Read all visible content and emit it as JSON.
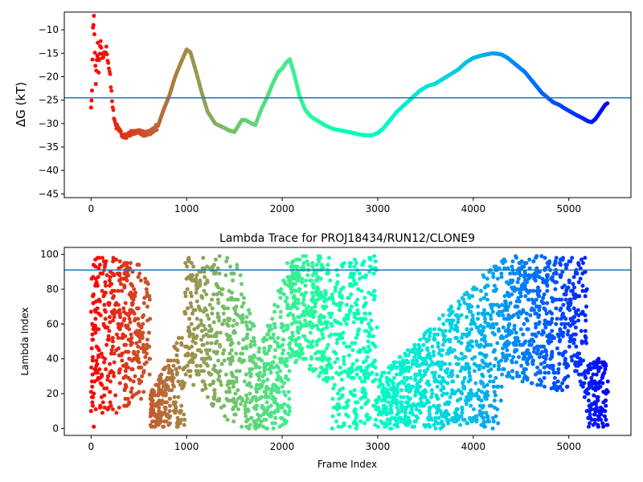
{
  "chart_data": [
    {
      "type": "scatter",
      "title": "",
      "xlabel": "",
      "ylabel": "ΔG (kT)",
      "xlim": [
        -280,
        5650
      ],
      "ylim": [
        -45.8,
        -6.2
      ],
      "xticks": [
        0,
        1000,
        2000,
        3000,
        4000,
        5000
      ],
      "yticks": [
        -45,
        -40,
        -35,
        -30,
        -25,
        -20,
        -15,
        -10
      ],
      "hline": -24.5,
      "hline_color": "#1f77b4",
      "colormap": "rainbow",
      "color_by": "frame index (early frames red/yellow, late frames purple)",
      "trace": [
        [
          0,
          -26
        ],
        [
          10,
          -23
        ],
        [
          20,
          -10
        ],
        [
          30,
          -7
        ],
        [
          40,
          -15
        ],
        [
          50,
          -21
        ],
        [
          60,
          -17
        ],
        [
          70,
          -13
        ],
        [
          80,
          -19
        ],
        [
          90,
          -15
        ],
        [
          100,
          -13
        ],
        [
          120,
          -16
        ],
        [
          140,
          -15
        ],
        [
          160,
          -14
        ],
        [
          180,
          -17
        ],
        [
          200,
          -20
        ],
        [
          220,
          -25
        ],
        [
          240,
          -29
        ],
        [
          260,
          -30.5
        ],
        [
          300,
          -31.5
        ],
        [
          340,
          -33
        ],
        [
          380,
          -32.5
        ],
        [
          420,
          -32
        ],
        [
          480,
          -32
        ],
        [
          520,
          -31.8
        ],
        [
          560,
          -32.2
        ],
        [
          600,
          -32
        ],
        [
          650,
          -31.5
        ],
        [
          700,
          -30.5
        ],
        [
          760,
          -27
        ],
        [
          820,
          -24
        ],
        [
          880,
          -20
        ],
        [
          940,
          -17
        ],
        [
          1000,
          -14.2
        ],
        [
          1040,
          -14.8
        ],
        [
          1100,
          -19
        ],
        [
          1160,
          -23.5
        ],
        [
          1220,
          -27.5
        ],
        [
          1300,
          -30
        ],
        [
          1380,
          -30.8
        ],
        [
          1450,
          -31.5
        ],
        [
          1500,
          -31.8
        ],
        [
          1540,
          -30.5
        ],
        [
          1580,
          -29.2
        ],
        [
          1620,
          -29.3
        ],
        [
          1680,
          -30
        ],
        [
          1720,
          -30.3
        ],
        [
          1780,
          -27
        ],
        [
          1840,
          -24.5
        ],
        [
          1900,
          -21.5
        ],
        [
          1960,
          -19
        ],
        [
          2000,
          -18.3
        ],
        [
          2040,
          -17
        ],
        [
          2080,
          -16.3
        ],
        [
          2120,
          -19
        ],
        [
          2180,
          -24
        ],
        [
          2240,
          -27
        ],
        [
          2300,
          -28.5
        ],
        [
          2380,
          -29.5
        ],
        [
          2460,
          -30.5
        ],
        [
          2540,
          -31.2
        ],
        [
          2620,
          -31.5
        ],
        [
          2700,
          -31.8
        ],
        [
          2780,
          -32.2
        ],
        [
          2860,
          -32.5
        ],
        [
          2940,
          -32.5
        ],
        [
          3000,
          -32
        ],
        [
          3060,
          -31
        ],
        [
          3120,
          -29.5
        ],
        [
          3200,
          -27.5
        ],
        [
          3280,
          -26
        ],
        [
          3360,
          -24.5
        ],
        [
          3440,
          -23
        ],
        [
          3520,
          -22
        ],
        [
          3600,
          -21.5
        ],
        [
          3680,
          -20.5
        ],
        [
          3760,
          -19.5
        ],
        [
          3840,
          -18.5
        ],
        [
          3920,
          -17
        ],
        [
          4000,
          -16
        ],
        [
          4080,
          -15.5
        ],
        [
          4150,
          -15.2
        ],
        [
          4200,
          -15
        ],
        [
          4250,
          -15.1
        ],
        [
          4300,
          -15.3
        ],
        [
          4360,
          -16
        ],
        [
          4420,
          -17
        ],
        [
          4480,
          -18
        ],
        [
          4540,
          -19
        ],
        [
          4600,
          -20.5
        ],
        [
          4660,
          -22
        ],
        [
          4720,
          -23.5
        ],
        [
          4780,
          -24.5
        ],
        [
          4840,
          -25.5
        ],
        [
          4900,
          -26
        ],
        [
          4960,
          -26.8
        ],
        [
          5020,
          -27.5
        ],
        [
          5080,
          -28.2
        ],
        [
          5140,
          -28.8
        ],
        [
          5200,
          -29.5
        ],
        [
          5240,
          -29.7
        ],
        [
          5280,
          -29
        ],
        [
          5330,
          -27.5
        ],
        [
          5380,
          -26
        ],
        [
          5410,
          -25.6
        ]
      ]
    },
    {
      "type": "scatter",
      "title": "Lambda Trace for PROJ18434/RUN12/CLONE9",
      "xlabel": "Frame Index",
      "ylabel": "Lambda Index",
      "xlim": [
        -280,
        5650
      ],
      "ylim": [
        -4,
        104
      ],
      "xticks": [
        0,
        1000,
        2000,
        3000,
        4000,
        5000
      ],
      "yticks": [
        0,
        20,
        40,
        60,
        80,
        100
      ],
      "hline": 91,
      "hline_color": "#1f77b4",
      "colormap": "rainbow",
      "color_by": "frame index (early frames red/yellow, late frames purple)",
      "frame_range": [
        0,
        5410
      ],
      "lambda_range": [
        0,
        99
      ]
    }
  ]
}
